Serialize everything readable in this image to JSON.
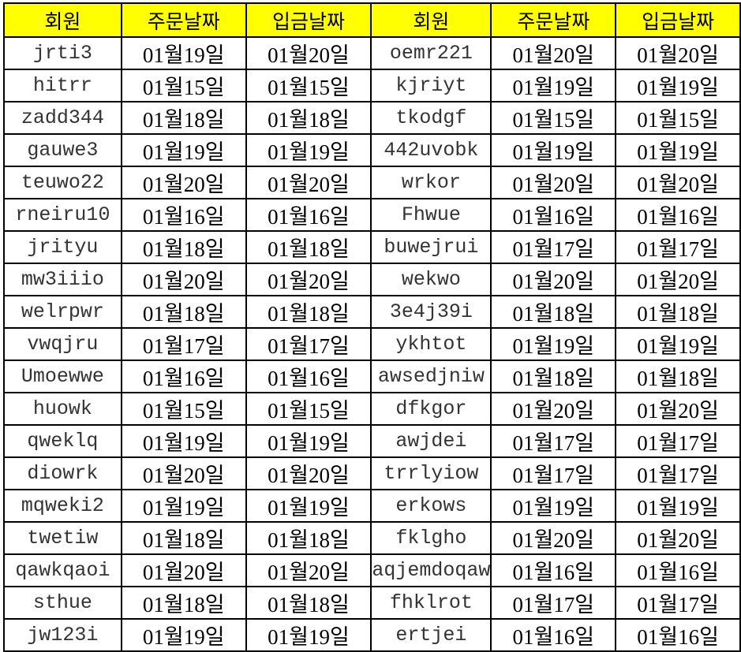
{
  "headers": [
    "회원",
    "주문날짜",
    "입금날짜",
    "회원",
    "주문날짜",
    "입금날짜"
  ],
  "header_color": "#ffff00",
  "rows": [
    [
      "jrti3",
      "01월19일",
      "01월20일",
      "oemr221",
      "01월20일",
      "01월20일"
    ],
    [
      "hitrr",
      "01월15일",
      "01월15일",
      "kjriyt",
      "01월19일",
      "01월19일"
    ],
    [
      "zadd344",
      "01월18일",
      "01월18일",
      "tkodgf",
      "01월15일",
      "01월15일"
    ],
    [
      "gauwe3",
      "01월19일",
      "01월19일",
      "442uvobk",
      "01월19일",
      "01월19일"
    ],
    [
      "teuwo22",
      "01월20일",
      "01월20일",
      "wrkor",
      "01월20일",
      "01월20일"
    ],
    [
      "rneiru10",
      "01월16일",
      "01월16일",
      "Fhwue",
      "01월16일",
      "01월16일"
    ],
    [
      "jrityu",
      "01월18일",
      "01월18일",
      "buwejrui",
      "01월17일",
      "01월17일"
    ],
    [
      "mw3iiio",
      "01월20일",
      "01월20일",
      "wekwo",
      "01월20일",
      "01월20일"
    ],
    [
      "welrpwr",
      "01월18일",
      "01월18일",
      "3e4j39i",
      "01월18일",
      "01월18일"
    ],
    [
      "vwqjru",
      "01월17일",
      "01월17일",
      "ykhtot",
      "01월19일",
      "01월19일"
    ],
    [
      "Umoewwe",
      "01월16일",
      "01월16일",
      "awsedjniw",
      "01월18일",
      "01월18일"
    ],
    [
      "huowk",
      "01월15일",
      "01월15일",
      "dfkgor",
      "01월20일",
      "01월20일"
    ],
    [
      "qweklq",
      "01월19일",
      "01월19일",
      "awjdei",
      "01월17일",
      "01월17일"
    ],
    [
      "diowrk",
      "01월20일",
      "01월20일",
      "trrlyiow",
      "01월17일",
      "01월17일"
    ],
    [
      "mqweki2",
      "01월19일",
      "01월19일",
      "erkows",
      "01월19일",
      "01월19일"
    ],
    [
      "twetiw",
      "01월18일",
      "01월18일",
      "fklgho",
      "01월20일",
      "01월20일"
    ],
    [
      "qawkqaoi",
      "01월20일",
      "01월20일",
      "aqjemdoqaw",
      "01월16일",
      "01월16일"
    ],
    [
      "sthue",
      "01월18일",
      "01월18일",
      "fhklrot",
      "01월17일",
      "01월17일"
    ],
    [
      "jw123i",
      "01월19일",
      "01월19일",
      "ertjei",
      "01월16일",
      "01월16일"
    ]
  ]
}
